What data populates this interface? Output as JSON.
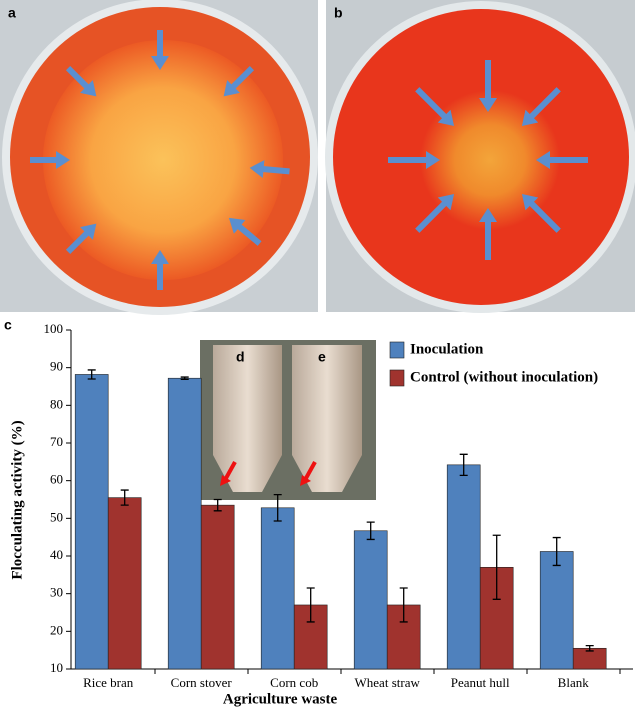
{
  "panels": {
    "a": "a",
    "b": "b",
    "c": "c",
    "d": "d",
    "e": "e"
  },
  "chart_data": {
    "type": "bar",
    "categories": [
      "Rice bran",
      "Corn stover",
      "Corn cob",
      "Wheat straw",
      "Peanut hull",
      "Blank"
    ],
    "x_label": "Agriculture waste",
    "y_label": "Flocculating activity (%)",
    "ylim": [
      10,
      100
    ],
    "yticks": [
      10,
      20,
      30,
      40,
      50,
      60,
      70,
      80,
      90,
      100
    ],
    "legend": "upper right",
    "series": [
      {
        "name": "Inoculation",
        "color": "#4f81bd",
        "values": [
          88.2,
          87.2,
          52.8,
          46.7,
          64.2,
          41.2
        ],
        "errors": [
          1.2,
          0.3,
          3.5,
          2.3,
          2.8,
          3.7
        ]
      },
      {
        "name": "Control (without inoculation)",
        "color": "#a0332e",
        "values": [
          55.5,
          53.5,
          27,
          27,
          37,
          15.5
        ],
        "errors": [
          2,
          1.5,
          4.5,
          4.5,
          8.5,
          0.7
        ]
      }
    ]
  }
}
